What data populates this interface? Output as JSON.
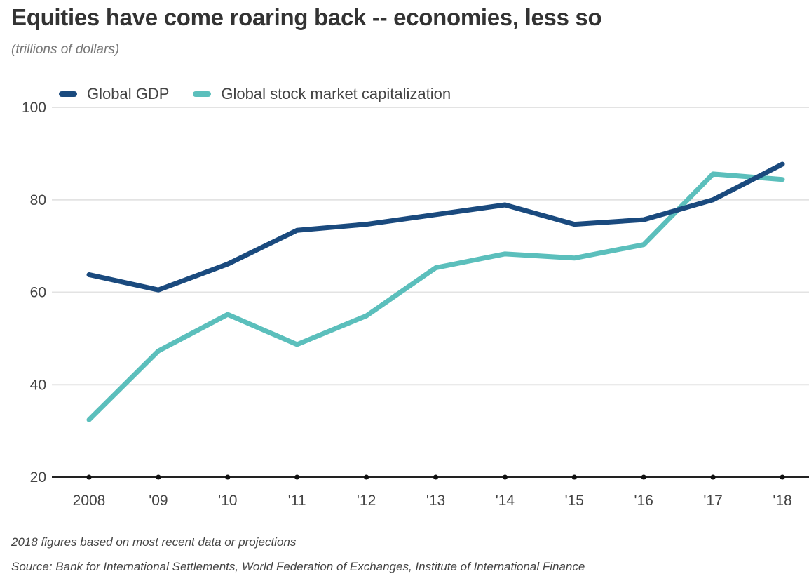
{
  "header": {
    "title": "Equities have come roaring back -- economies, less so",
    "subtitle": "(trillions of dollars)"
  },
  "footer": {
    "note": "2018 figures based on most recent data or projections",
    "source": "Source: Bank for International Settlements, World Federation of Exchanges, Institute of International Finance"
  },
  "chart_data": {
    "type": "line",
    "title": "Equities have come roaring back -- economies, less so",
    "subtitle": "(trillions of dollars)",
    "xlabel": "",
    "ylabel": "",
    "x": [
      "2008",
      "'09",
      "'10",
      "'11",
      "'12",
      "'13",
      "'14",
      "'15",
      "'16",
      "'17",
      "'18"
    ],
    "ylim": [
      20,
      100
    ],
    "yticks": [
      20,
      40,
      60,
      80,
      100
    ],
    "grid": true,
    "legend_position": "top-left",
    "series": [
      {
        "name": "Global GDP",
        "color": "#1a4a7e",
        "values": [
          63.8,
          60.5,
          66.1,
          73.4,
          74.7,
          76.8,
          78.9,
          74.7,
          75.7,
          80.0,
          87.7
        ]
      },
      {
        "name": "Global stock market capitalization",
        "color": "#5bbfbc",
        "values": [
          32.4,
          47.3,
          55.2,
          48.7,
          54.9,
          65.3,
          68.3,
          67.4,
          70.3,
          85.6,
          84.4
        ]
      }
    ]
  }
}
